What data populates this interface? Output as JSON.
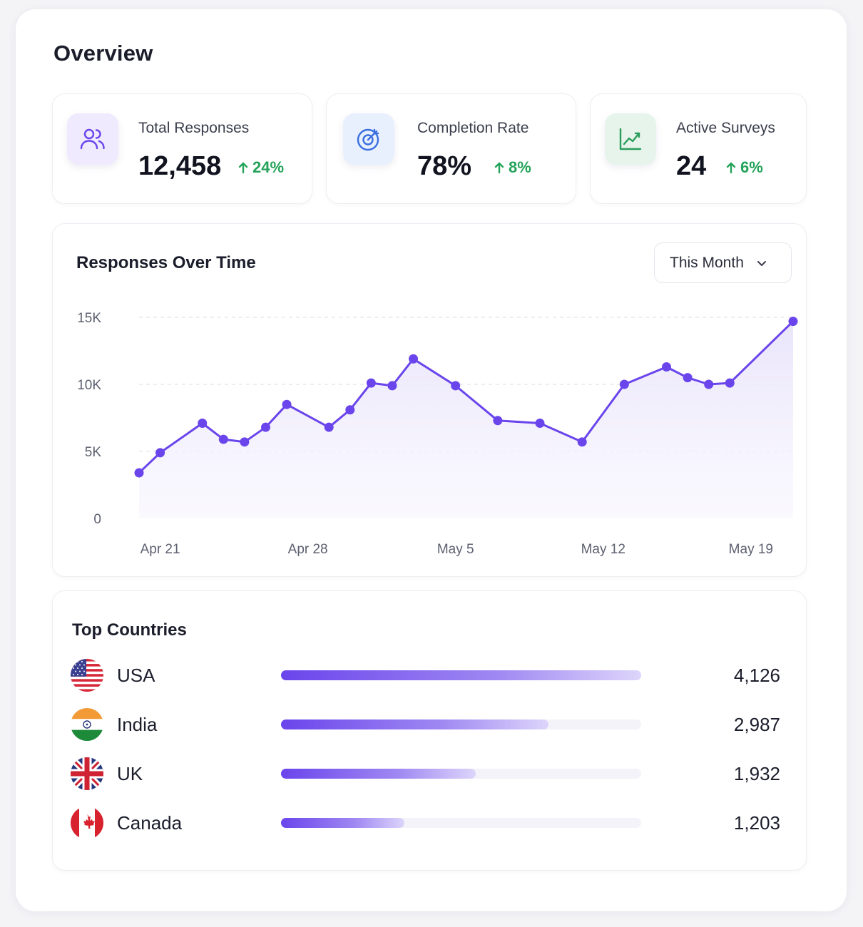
{
  "page_title": "Overview",
  "stats": [
    {
      "label": "Total Responses",
      "value": "12,458",
      "delta": "24%",
      "icon": "users-icon"
    },
    {
      "label": "Completion Rate",
      "value": "78%",
      "delta": "8%",
      "icon": "target-icon"
    },
    {
      "label": "Active Surveys",
      "value": "24",
      "delta": "6%",
      "icon": "line-chart-icon"
    }
  ],
  "chart_section": {
    "title": "Responses Over Time",
    "period_select": "This Month"
  },
  "chart_data": {
    "type": "area",
    "title": "Responses Over Time",
    "xlabel": "",
    "ylabel": "",
    "x_ticks": [
      "Apr 21",
      "Apr 28",
      "May 5",
      "May 12",
      "May 19"
    ],
    "y_ticks": [
      "0",
      "5K",
      "10K",
      "15K"
    ],
    "ylim": [
      0,
      15000
    ],
    "grid": true,
    "series": [
      {
        "values": [
          {
            "x": "Apr 20",
            "y": 3400
          },
          {
            "x": "Apr 21",
            "y": 4900
          },
          {
            "x": "Apr 23",
            "y": 7100
          },
          {
            "x": "Apr 24",
            "y": 5900
          },
          {
            "x": "Apr 25",
            "y": 5700
          },
          {
            "x": "Apr 26",
            "y": 6800
          },
          {
            "x": "Apr 27",
            "y": 8500
          },
          {
            "x": "Apr 29",
            "y": 6800
          },
          {
            "x": "Apr 30",
            "y": 8100
          },
          {
            "x": "May 1",
            "y": 10100
          },
          {
            "x": "May 2",
            "y": 9900
          },
          {
            "x": "May 3",
            "y": 11900
          },
          {
            "x": "May 5",
            "y": 9900
          },
          {
            "x": "May 7",
            "y": 7300
          },
          {
            "x": "May 9",
            "y": 7100
          },
          {
            "x": "May 11",
            "y": 5700
          },
          {
            "x": "May 13",
            "y": 10000
          },
          {
            "x": "May 15",
            "y": 11300
          },
          {
            "x": "May 16",
            "y": 10500
          },
          {
            "x": "May 17",
            "y": 10000
          },
          {
            "x": "May 18",
            "y": 10100
          },
          {
            "x": "May 21",
            "y": 14700
          }
        ]
      }
    ],
    "colors": {
      "line": "#6a45ec",
      "fill": "#efebfc",
      "grid": "#dcdce6"
    }
  },
  "countries_section": {
    "title": "Top Countries",
    "items": [
      {
        "name": "USA",
        "count": "4,126",
        "share": 1.0,
        "flag": "us-flag-icon"
      },
      {
        "name": "India",
        "count": "2,987",
        "share": 0.742,
        "flag": "india-flag-icon"
      },
      {
        "name": "UK",
        "count": "1,932",
        "share": 0.54,
        "flag": "uk-flag-icon"
      },
      {
        "name": "Canada",
        "count": "1,203",
        "share": 0.342,
        "flag": "canada-flag-icon"
      }
    ]
  },
  "colors": {
    "accent": "#6a45ec",
    "positive": "#23a35a"
  }
}
